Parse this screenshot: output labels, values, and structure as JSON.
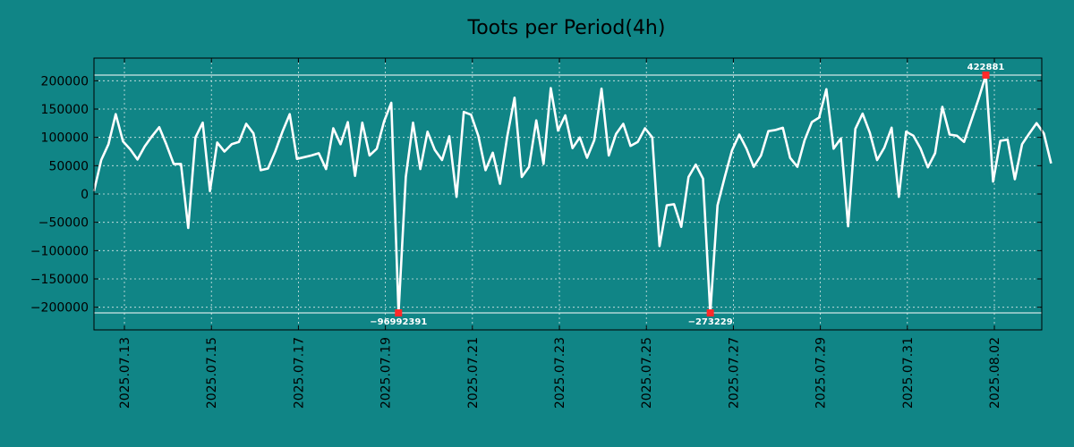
{
  "chart_data": {
    "type": "line",
    "title": "Toots per Period(4h)",
    "xlabel": "",
    "ylabel": "",
    "ylim": [
      -240000,
      240000
    ],
    "yticks": [
      200000,
      150000,
      100000,
      50000,
      0,
      -50000,
      -100000,
      -150000,
      -200000
    ],
    "ytick_labels": [
      "200000",
      "150000",
      "100000",
      "50000",
      "0",
      "−50000",
      "−100000",
      "−150000",
      "−200000"
    ],
    "x_start_day": 12.3,
    "x_step_days": 0.1667,
    "xticks_day": [
      13,
      15,
      17,
      19,
      21,
      23,
      25,
      27,
      29,
      31,
      33
    ],
    "xtick_labels": [
      "2025.07.13",
      "2025.07.15",
      "2025.07.17",
      "2025.07.19",
      "2025.07.21",
      "2025.07.23",
      "2025.07.25",
      "2025.07.27",
      "2025.07.29",
      "2025.07.31",
      "2025.08.02"
    ],
    "grid": true,
    "hlines": [
      210000,
      -210000
    ],
    "series": [
      {
        "name": "toots",
        "color": "#ffffff",
        "values": [
          5000,
          60000,
          88000,
          141000,
          93000,
          79000,
          61000,
          84000,
          102000,
          118000,
          87000,
          53000,
          53000,
          -60000,
          100000,
          126000,
          5000,
          91000,
          75000,
          88000,
          92000,
          124000,
          107000,
          42000,
          45000,
          75000,
          110000,
          141000,
          62000,
          65000,
          68000,
          72000,
          44000,
          116000,
          88000,
          127000,
          32000,
          126000,
          68000,
          80000,
          128000,
          161000,
          -210000,
          30000,
          126000,
          44000,
          110000,
          78000,
          60000,
          102000,
          -5000,
          145000,
          140000,
          103000,
          42000,
          73000,
          18000,
          102000,
          170000,
          30000,
          48000,
          130000,
          53000,
          187000,
          112000,
          139000,
          81000,
          100000,
          64000,
          95000,
          186000,
          68000,
          106000,
          124000,
          85000,
          92000,
          116000,
          100000,
          -92000,
          -20000,
          -18000,
          -58000,
          30000,
          52000,
          27000,
          -210000,
          -20000,
          30000,
          77000,
          105000,
          80000,
          48000,
          68000,
          111000,
          113000,
          117000,
          64000,
          48000,
          95000,
          127000,
          135000,
          185000,
          80000,
          98000,
          -57000,
          115000,
          142000,
          108000,
          60000,
          82000,
          117000,
          -5000,
          110000,
          103000,
          80000,
          47000,
          72000,
          154000,
          105000,
          103000,
          92000,
          130000,
          168000,
          210000,
          22000,
          94000,
          96000,
          26000,
          88000,
          107000,
          125000,
          107000,
          54000
        ]
      }
    ],
    "markers": [
      {
        "index": 42,
        "value": -210000,
        "label": "−96992391",
        "label_pos": "below"
      },
      {
        "index": 85,
        "value": -210000,
        "label": "−273229",
        "label_pos": "below"
      },
      {
        "index": 123,
        "value": 210000,
        "label": "422881",
        "label_pos": "above"
      }
    ]
  }
}
